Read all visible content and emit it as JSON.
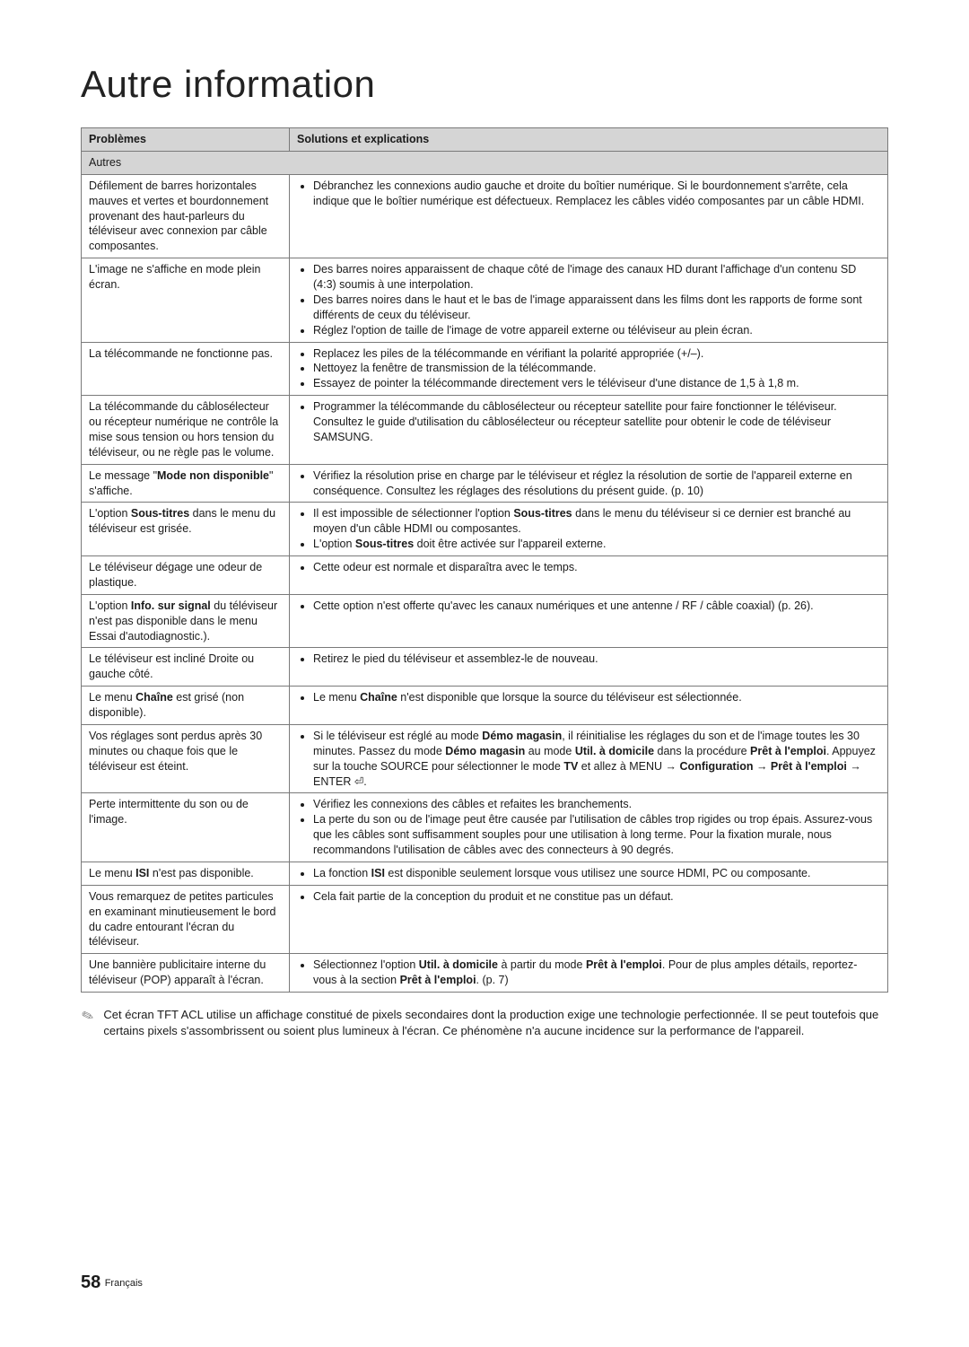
{
  "title": "Autre information",
  "table": {
    "headers": {
      "col1": "Problèmes",
      "col2": "Solutions et explications"
    },
    "section_label": "Autres",
    "rows": [
      {
        "problem": "Défilement de barres horizontales mauves et vertes et bourdonnement provenant des haut-parleurs du téléviseur avec connexion par câble composantes.",
        "solutions": [
          "Débranchez les connexions audio gauche et droite du boîtier numérique. Si le bourdonnement s'arrête, cela indique que le boîtier numérique est défectueux. Remplacez les câbles vidéo composantes par un câble HDMI."
        ]
      },
      {
        "problem": "L'image ne s'affiche en mode plein écran.",
        "solutions": [
          "Des barres noires apparaissent de chaque côté de l'image des canaux HD durant l'affichage d'un contenu SD (4:3) soumis à une interpolation.",
          "Des barres noires dans le haut et le bas de l'image apparaissent dans les films dont les rapports de forme sont différents de ceux du téléviseur.",
          "Réglez l'option de taille de l'image de votre appareil externe ou téléviseur au plein écran."
        ]
      },
      {
        "problem": "La télécommande ne fonctionne pas.",
        "solutions": [
          "Replacez les piles de la télécommande en vérifiant la polarité appropriée (+/–).",
          "Nettoyez la fenêtre de transmission de la télécommande.",
          "Essayez de pointer la télécommande directement vers le téléviseur d'une distance de 1,5 à 1,8 m."
        ]
      },
      {
        "problem": "La télécommande du câblosélecteur ou récepteur numérique ne contrôle la mise sous tension ou hors tension du téléviseur, ou ne règle pas le volume.",
        "solutions": [
          "Programmer la télécommande du câblosélecteur ou récepteur satellite pour faire fonctionner le téléviseur. Consultez le guide d'utilisation du câblosélecteur ou récepteur satellite pour obtenir le code de téléviseur SAMSUNG."
        ]
      },
      {
        "problem_html": "Le message \"<b>Mode non disponible</b>\" s'affiche.",
        "solutions": [
          "Vérifiez la résolution prise en charge par le téléviseur et réglez la résolution de sortie de l'appareil externe en conséquence. Consultez les réglages des résolutions du présent guide. (p. 10)"
        ]
      },
      {
        "problem_html": "L'option <b>Sous-titres</b> dans le menu du téléviseur est grisée.",
        "solutions_html": [
          "Il est impossible de sélectionner l'option <b>Sous-titres</b> dans le menu du téléviseur si ce dernier est branché au moyen d'un câble HDMI ou composantes.",
          "L'option <b>Sous-titres</b> doit être activée sur l'appareil externe."
        ]
      },
      {
        "problem": "Le téléviseur dégage une odeur de plastique.",
        "solutions": [
          "Cette odeur est normale et disparaîtra avec le temps."
        ]
      },
      {
        "problem_html": "L'option <b>Info. sur signal</b> du téléviseur n'est pas disponible dans le menu Essai d'autodiagnostic.).",
        "solutions": [
          "Cette option n'est offerte qu'avec les canaux numériques et une antenne / RF / câble coaxial) (p. 26)."
        ]
      },
      {
        "problem": "Le téléviseur est incliné Droite ou gauche côté.",
        "solutions": [
          "Retirez le pied du téléviseur et assemblez-le de nouveau."
        ]
      },
      {
        "problem_html": "Le menu <b>Chaîne</b> est grisé (non disponible).",
        "solutions_html": [
          "Le menu <b>Chaîne</b> n'est disponible que lorsque la source du téléviseur est sélectionnée."
        ]
      },
      {
        "problem": "Vos réglages sont perdus après 30 minutes ou chaque fois que le téléviseur est éteint.",
        "solutions_html": [
          "Si le téléviseur est réglé au mode <b>Démo magasin</b>, il réinitialise les réglages du son et de l'image toutes les 30 minutes. Passez du mode <b>Démo magasin</b> au mode <b>Util. à domicile</b> dans la procédure <b>Prêt à l'emploi</b>. Appuyez sur la touche SOURCE pour sélectionner le mode <b>TV</b> et allez à MENU → <b>Configuration</b> → <b>Prêt à l'emploi</b> → ENTER ⏎."
        ]
      },
      {
        "problem": "Perte intermittente du son ou de l'image.",
        "solutions": [
          "Vérifiez les connexions des câbles et refaites les branchements.",
          "La perte du son ou de l'image peut être causée par l'utilisation de câbles trop rigides ou trop épais. Assurez-vous que les câbles sont suffisamment souples pour une utilisation à long terme. Pour la fixation murale, nous recommandons l'utilisation de câbles avec des connecteurs à 90 degrés."
        ]
      },
      {
        "problem_html": "Le menu <b>ISI</b> n'est pas disponible.",
        "solutions_html": [
          "La fonction <b>ISI</b> est disponible seulement lorsque vous utilisez une source HDMI, PC ou composante."
        ]
      },
      {
        "problem": "Vous remarquez de petites particules en examinant minutieusement le bord du cadre entourant l'écran du téléviseur.",
        "solutions": [
          "Cela fait partie de la conception du produit et ne constitue pas un défaut."
        ]
      },
      {
        "problem": "Une bannière publicitaire interne du téléviseur (POP) apparaît à l'écran.",
        "solutions_html": [
          "Sélectionnez l'option <b>Util. à domicile</b> à partir du mode <b>Prêt à l'emploi</b>. Pour de plus amples détails, reportez-vous à la section <b>Prêt à l'emploi</b>. (p. 7)"
        ]
      }
    ]
  },
  "note": "Cet écran TFT ACL utilise un affichage constitué de pixels secondaires dont la production exige une technologie perfectionnée. Il se peut toutefois que certains pixels s'assombrissent ou soient plus lumineux à l'écran. Ce phénomène n'a aucune incidence sur la performance de l'appareil.",
  "footer": {
    "page": "58",
    "lang": "Français"
  },
  "colors": {
    "header_bg": "#d5d5d5",
    "border": "#7a7a7a",
    "text": "#1a1a1a"
  }
}
